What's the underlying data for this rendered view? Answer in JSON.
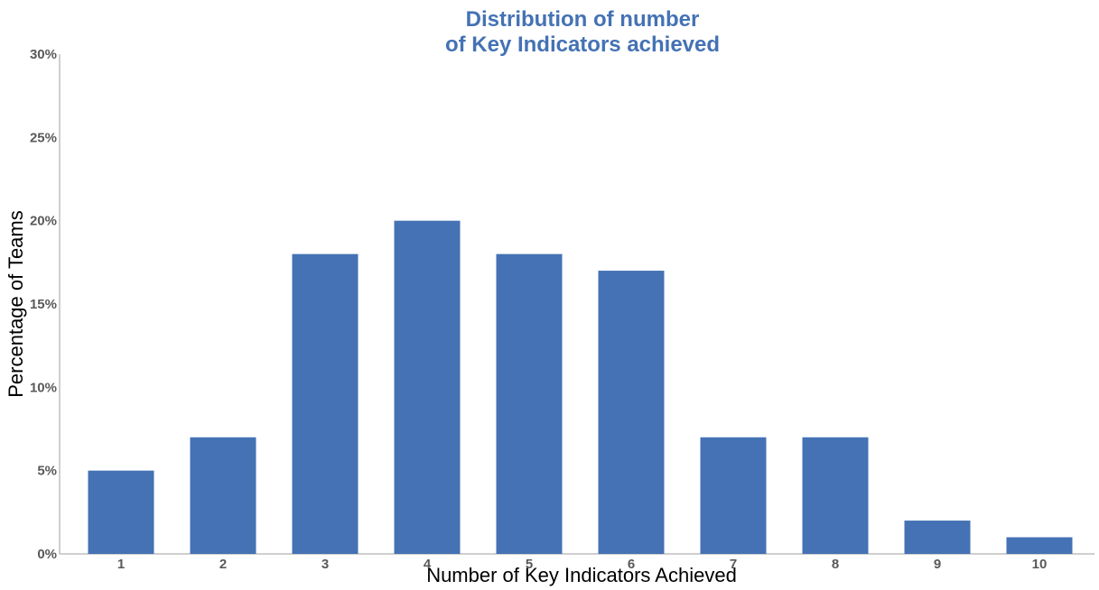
{
  "chart_data": {
    "type": "bar",
    "title_lines": [
      "Distribution of number",
      "of Key Indicators achieved"
    ],
    "xlabel": "Number of Key Indicators Achieved",
    "ylabel": "Percentage of Teams",
    "categories": [
      "1",
      "2",
      "3",
      "4",
      "5",
      "6",
      "7",
      "8",
      "9",
      "10"
    ],
    "values": [
      5,
      7,
      18,
      20,
      18,
      17,
      7,
      7,
      2,
      1
    ],
    "value_unit": "percent",
    "ylim": [
      0,
      30
    ],
    "yticks": [
      "0%",
      "5%",
      "10%",
      "15%",
      "20%",
      "25%",
      "30%"
    ],
    "grid": false,
    "legend": "none",
    "colors": {
      "bar": "#4472b4",
      "title": "#4472b4",
      "axis": "#bfbfbf",
      "tick_text": "#595959"
    }
  }
}
